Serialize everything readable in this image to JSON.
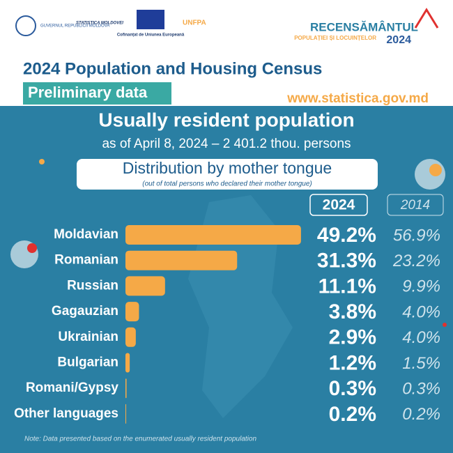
{
  "header": {
    "logos": [
      "GUVERNUL REPUBLICII MOLDOVA",
      "STATISTICA MOLDOVEI",
      "Cofinanțat de Uniunea Europeană",
      "UNFPA"
    ],
    "census_logo": {
      "name": "RECENSĂMÂNTUL",
      "sub": "POPULAȚIEI ȘI LOCUINȚELOR",
      "year": "2024"
    }
  },
  "chart_data": {
    "type": "bar",
    "orientation": "horizontal",
    "title": "2024 Population and Housing Census",
    "badge": "Preliminary data",
    "website": "www.statistica.gov.md",
    "heading": "Usually resident population",
    "subheading": "as of April 8, 2024 – 2 401.2 thou. persons",
    "chart_title": "Distribution by mother tongue",
    "chart_subtitle": "(out of total persons who declared their mother tongue)",
    "categories": [
      "Moldavian",
      "Romanian",
      "Russian",
      "Gagauzian",
      "Ukrainian",
      "Bulgarian",
      "Romani/Gypsy",
      "Other languages"
    ],
    "series": [
      {
        "name": "2024",
        "color": "#f5a947",
        "values": [
          49.2,
          31.3,
          11.1,
          3.8,
          2.9,
          1.2,
          0.3,
          0.2
        ],
        "value_labels": [
          "49.2%",
          "31.3%",
          "11.1%",
          "3.8%",
          "2.9%",
          "1.2%",
          "0.3%",
          "0.2%"
        ]
      },
      {
        "name": "2014",
        "color": "#cfe3ec",
        "values": [
          56.9,
          23.2,
          9.9,
          4.0,
          4.0,
          1.5,
          0.3,
          0.2
        ],
        "value_labels": [
          "56.9%",
          "23.2%",
          "9.9%",
          "4.0%",
          "4.0%",
          "1.5%",
          "0.3%",
          "0.2%"
        ]
      }
    ],
    "note": "Note: Data presented based on the enumerated usually resident population"
  }
}
